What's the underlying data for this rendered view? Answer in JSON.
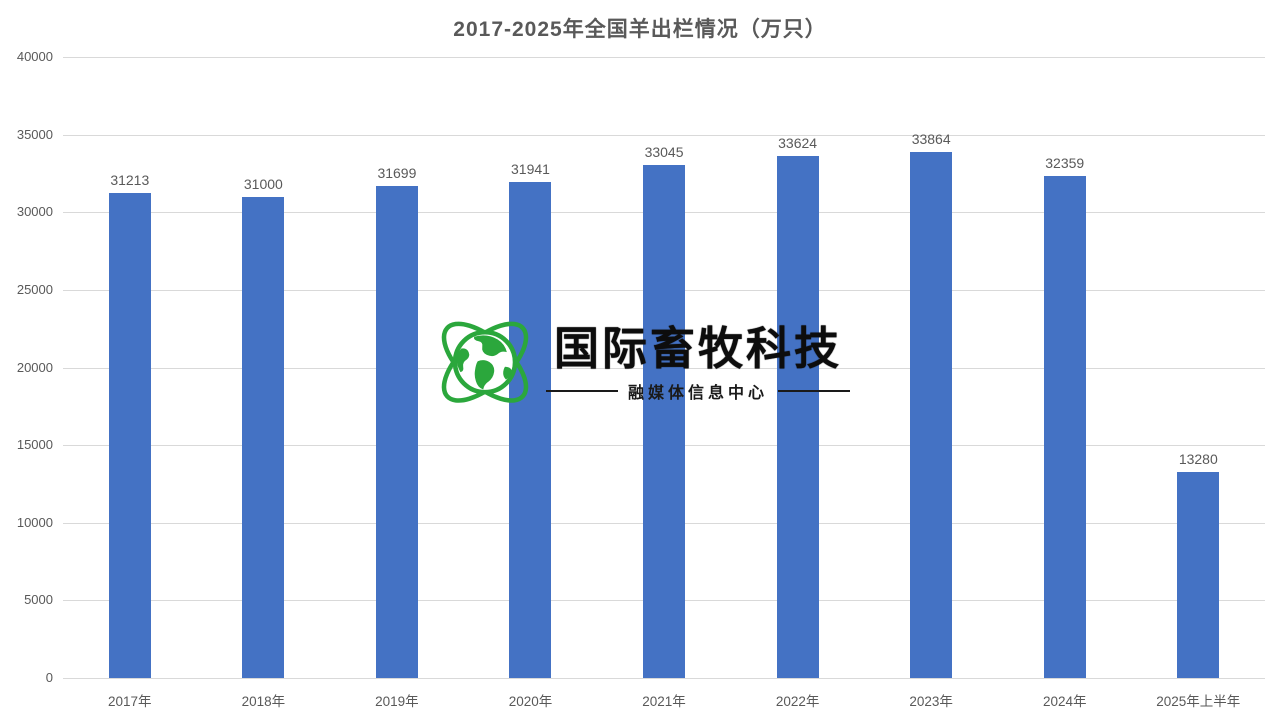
{
  "title": "2017-2025年全国羊出栏情况（万只）",
  "chart_data": {
    "type": "bar",
    "title": "2017-2025年全国羊出栏情况（万只）",
    "categories": [
      "2017年",
      "2018年",
      "2019年",
      "2020年",
      "2021年",
      "2022年",
      "2023年",
      "2024年",
      "2025年上半年"
    ],
    "values": [
      31213,
      31000,
      31699,
      31941,
      33045,
      33624,
      33864,
      32359,
      13280
    ],
    "xlabel": "",
    "ylabel": "",
    "ylim": [
      0,
      40000
    ],
    "yticks": [
      0,
      5000,
      10000,
      15000,
      20000,
      25000,
      30000,
      35000,
      40000
    ],
    "grid": "horizontal",
    "legend": "none",
    "bar_color": "#4472c4",
    "gridline_color": "#d9d9d9",
    "axis_text_color": "#595959",
    "value_label_color": "#595959"
  },
  "watermark": {
    "brand": "国际畜牧科技",
    "subtitle": "融媒体信息中心",
    "globe_icon": "globe-orbit-icon",
    "globe_color": "#2ba73c",
    "text_color": "#0d0d0d"
  }
}
